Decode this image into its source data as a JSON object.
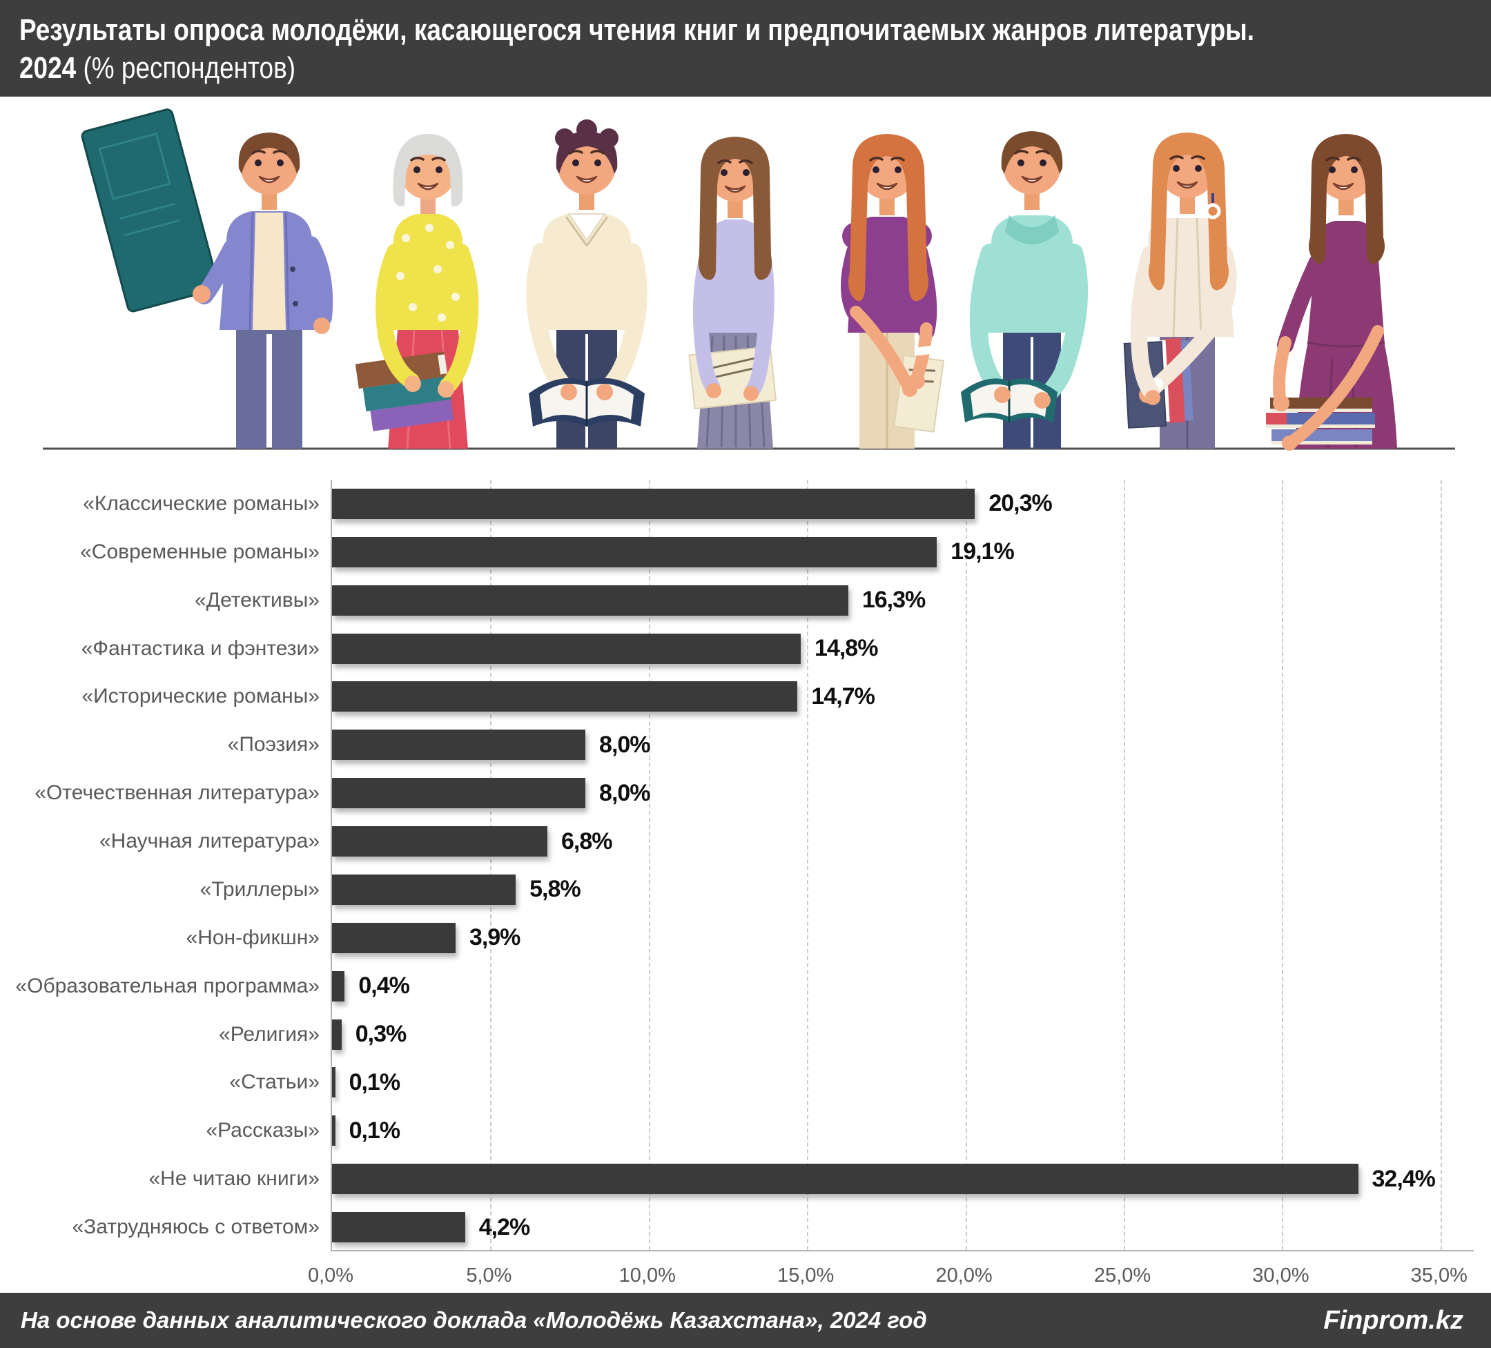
{
  "header": {
    "title_line1": "Результаты опроса молодёжи, касающегося чтения книг и предпочитаемых жанров литературы.",
    "title_year": "2024",
    "title_suffix": " (% респондентов)"
  },
  "illustration": {
    "description": "Группа из восьми молодых людей с книгами в руках"
  },
  "chart_data": {
    "type": "bar",
    "orientation": "horizontal",
    "title": "Результаты опроса молодёжи, касающегося чтения книг и предпочитаемых жанров литературы. 2024 (% респондентов)",
    "categories": [
      "«Классические романы»",
      "«Современные романы»",
      "«Детективы»",
      "«Фантастика и фэнтези»",
      "«Исторические романы»",
      "«Поэзия»",
      "«Отечественная литература»",
      "«Научная литература»",
      "«Триллеры»",
      "«Нон-фикшн»",
      "«Образовательная программа»",
      "«Религия»",
      "«Статьи»",
      "«Рассказы»",
      "«Не читаю книги»",
      "«Затрудняюсь с ответом»"
    ],
    "values": [
      20.3,
      19.1,
      16.3,
      14.8,
      14.7,
      8.0,
      8.0,
      6.8,
      5.8,
      3.9,
      0.4,
      0.3,
      0.1,
      0.1,
      32.4,
      4.2
    ],
    "value_labels": [
      "20,3%",
      "19,1%",
      "16,3%",
      "14,8%",
      "14,7%",
      "8,0%",
      "8,0%",
      "6,8%",
      "5,8%",
      "3,9%",
      "0,4%",
      "0,3%",
      "0,1%",
      "0,1%",
      "32,4%",
      "4,2%"
    ],
    "x_ticks": [
      "0,0%",
      "5,0%",
      "10,0%",
      "15,0%",
      "20,0%",
      "25,0%",
      "30,0%",
      "35,0%"
    ],
    "xlim": [
      0,
      35
    ],
    "xlabel": "",
    "ylabel": "",
    "grid": "dashed-vertical",
    "legend": "none",
    "bar_color": "#3a3a3a",
    "label_color": "#595959",
    "value_color": "#0f0f0f"
  },
  "footer": {
    "source": "На основе данных аналитического доклада «Молодёжь Казахстана», 2024 год",
    "brand": "Finprom.kz"
  }
}
